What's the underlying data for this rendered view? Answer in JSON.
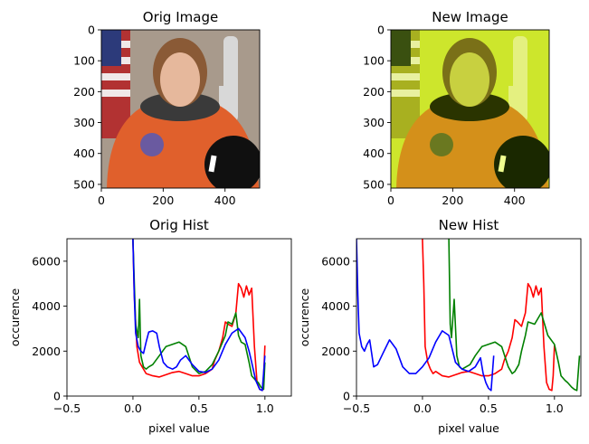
{
  "chart_data": [
    {
      "type": "image",
      "title": "Orig Image",
      "xlim": [
        0,
        512
      ],
      "ylim": [
        512,
        0
      ],
      "xticks": [
        0,
        200,
        400
      ],
      "yticks": [
        0,
        100,
        200,
        300,
        400,
        500
      ],
      "image_content": "astronaut portrait, orange suit, US flag left, shuttle right, helmet lower right",
      "palette": {
        "bg": "#a89a8c",
        "suit": "#e0602c",
        "flag_red": "#b23232",
        "flag_blue": "#2c3a7a",
        "skin": "#e6b89c",
        "hair": "#8a5a36",
        "helmet": "#101010",
        "shuttle": "#d8d8d8"
      }
    },
    {
      "type": "image",
      "title": "New Image",
      "xlim": [
        0,
        512
      ],
      "ylim": [
        512,
        0
      ],
      "xticks": [
        0,
        200,
        400
      ],
      "yticks": [
        0,
        100,
        200,
        300,
        400,
        500
      ],
      "image_content": "same astronaut portrait with yellow-green color shift",
      "palette": {
        "bg": "#cde62c",
        "suit": "#d4901a",
        "flag_red": "#a8b020",
        "flag_blue": "#3a5010",
        "skin": "#c8d040",
        "hair": "#7a7018",
        "helmet": "#1a2800",
        "shuttle": "#e4f080"
      }
    },
    {
      "type": "line",
      "title": "Orig Hist",
      "xlabel": "pixel value",
      "ylabel": "occurence",
      "xlim": [
        -0.5,
        1.2
      ],
      "ylim": [
        0,
        7000
      ],
      "xticks": [
        -0.5,
        0.0,
        0.5,
        1.0
      ],
      "xtick_labels": [
        "−0.5",
        "0.0",
        "0.5",
        "1.0"
      ],
      "yticks": [
        0,
        2000,
        4000,
        6000
      ],
      "series": [
        {
          "name": "red",
          "color": "#ff0000",
          "x": [
            0.0,
            0.01,
            0.03,
            0.05,
            0.08,
            0.1,
            0.15,
            0.2,
            0.25,
            0.3,
            0.35,
            0.4,
            0.45,
            0.5,
            0.55,
            0.6,
            0.62,
            0.65,
            0.68,
            0.7,
            0.72,
            0.75,
            0.78,
            0.8,
            0.82,
            0.84,
            0.86,
            0.88,
            0.9,
            0.92,
            0.94,
            0.96,
            0.98,
            0.99,
            1.0
          ],
          "y": [
            7000,
            4500,
            2200,
            1500,
            1200,
            1000,
            900,
            850,
            950,
            1050,
            1100,
            1000,
            900,
            900,
            1000,
            1200,
            1600,
            2000,
            2600,
            3300,
            3200,
            3100,
            3700,
            5000,
            4800,
            4400,
            4900,
            4500,
            4800,
            2200,
            600,
            300,
            250,
            900,
            2250
          ]
        },
        {
          "name": "green",
          "color": "#008000",
          "x": [
            0.0,
            0.02,
            0.04,
            0.05,
            0.06,
            0.08,
            0.1,
            0.12,
            0.15,
            0.2,
            0.25,
            0.3,
            0.35,
            0.4,
            0.45,
            0.5,
            0.55,
            0.6,
            0.65,
            0.7,
            0.72,
            0.75,
            0.78,
            0.8,
            0.82,
            0.85,
            0.88,
            0.9,
            0.93,
            0.95,
            0.97,
            0.99,
            1.0
          ],
          "y": [
            7000,
            3200,
            2600,
            4300,
            1800,
            1300,
            1200,
            1300,
            1400,
            1800,
            2200,
            2300,
            2400,
            2200,
            1300,
            1000,
            1100,
            1400,
            2000,
            2700,
            3300,
            3200,
            3700,
            2700,
            2400,
            2300,
            1500,
            900,
            700,
            600,
            400,
            300,
            1500
          ]
        },
        {
          "name": "blue",
          "color": "#0000ff",
          "x": [
            0.0,
            0.01,
            0.02,
            0.04,
            0.06,
            0.08,
            0.1,
            0.12,
            0.15,
            0.18,
            0.2,
            0.23,
            0.26,
            0.3,
            0.33,
            0.36,
            0.4,
            0.45,
            0.5,
            0.55,
            0.6,
            0.65,
            0.7,
            0.75,
            0.8,
            0.85,
            0.88,
            0.9,
            0.93,
            0.96,
            0.98,
            1.0
          ],
          "y": [
            7000,
            4500,
            2800,
            2200,
            2000,
            1900,
            2400,
            2850,
            2900,
            2800,
            2200,
            1500,
            1300,
            1200,
            1300,
            1600,
            1800,
            1400,
            1100,
            1050,
            1200,
            1600,
            2300,
            2800,
            3000,
            2600,
            2000,
            1500,
            700,
            300,
            250,
            1800
          ]
        }
      ]
    },
    {
      "type": "line",
      "title": "New Hist",
      "xlabel": "pixel value",
      "ylabel": "occurence",
      "xlim": [
        -0.5,
        1.2
      ],
      "ylim": [
        0,
        7000
      ],
      "xticks": [
        -0.5,
        0.0,
        0.5,
        1.0
      ],
      "xtick_labels": [
        "−0.5",
        "0.0",
        "0.5",
        "1.0"
      ],
      "yticks": [
        0,
        2000,
        4000,
        6000
      ],
      "series": [
        {
          "name": "red",
          "color": "#ff0000",
          "x": [
            0.0,
            0.01,
            0.02,
            0.04,
            0.06,
            0.08,
            0.1,
            0.15,
            0.2,
            0.25,
            0.3,
            0.35,
            0.4,
            0.45,
            0.5,
            0.55,
            0.6,
            0.62,
            0.65,
            0.68,
            0.7,
            0.72,
            0.75,
            0.78,
            0.8,
            0.82,
            0.84,
            0.86,
            0.88,
            0.9,
            0.92,
            0.94,
            0.96,
            0.98,
            0.99,
            1.0
          ],
          "y": [
            7000,
            5000,
            2200,
            1500,
            1200,
            1000,
            1100,
            900,
            850,
            950,
            1050,
            1100,
            1000,
            900,
            900,
            1000,
            1200,
            1600,
            2000,
            2600,
            3400,
            3300,
            3100,
            3700,
            5000,
            4800,
            4400,
            4900,
            4500,
            4800,
            2200,
            600,
            300,
            250,
            900,
            2250
          ]
        },
        {
          "name": "green",
          "color": "#008000",
          "x": [
            0.2,
            0.21,
            0.22,
            0.24,
            0.26,
            0.28,
            0.3,
            0.33,
            0.36,
            0.4,
            0.45,
            0.5,
            0.55,
            0.6,
            0.65,
            0.68,
            0.7,
            0.73,
            0.75,
            0.78,
            0.8,
            0.85,
            0.9,
            0.95,
            1.0,
            1.03,
            1.05,
            1.08,
            1.1,
            1.13,
            1.15,
            1.17,
            1.19
          ],
          "y": [
            7000,
            3200,
            2600,
            4300,
            1800,
            1300,
            1200,
            1300,
            1400,
            1800,
            2200,
            2300,
            2400,
            2200,
            1300,
            1000,
            1100,
            1400,
            2000,
            2700,
            3300,
            3200,
            3700,
            2700,
            2300,
            1500,
            900,
            700,
            600,
            400,
            300,
            250,
            1800
          ]
        },
        {
          "name": "blue",
          "color": "#0000ff",
          "x": [
            -0.5,
            -0.49,
            -0.48,
            -0.46,
            -0.44,
            -0.42,
            -0.4,
            -0.37,
            -0.34,
            -0.3,
            -0.25,
            -0.2,
            -0.15,
            -0.1,
            -0.05,
            0.0,
            0.05,
            0.1,
            0.15,
            0.2,
            0.25,
            0.3,
            0.35,
            0.4,
            0.44,
            0.46,
            0.48,
            0.5,
            0.52,
            0.54
          ],
          "y": [
            7000,
            4500,
            2800,
            2200,
            2000,
            2300,
            2500,
            1300,
            1400,
            1900,
            2500,
            2100,
            1300,
            1000,
            1000,
            1300,
            1700,
            2400,
            2900,
            2700,
            1500,
            1200,
            1100,
            1300,
            1700,
            1000,
            600,
            350,
            250,
            1800
          ]
        }
      ]
    }
  ]
}
